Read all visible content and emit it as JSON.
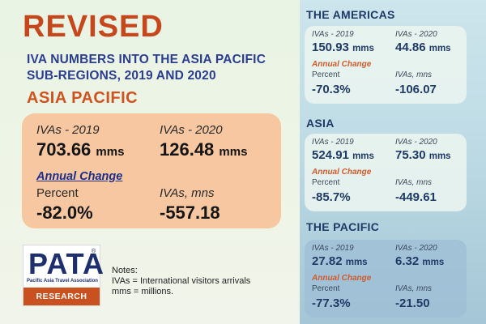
{
  "heading": {
    "revised": "REVISED",
    "subtitle_line1": "IVA NUMBERS INTO THE ASIA PACIFIC",
    "subtitle_line2": "SUB-REGIONS, 2019 AND 2020"
  },
  "asia_pacific": {
    "title": "ASIA PACIFIC",
    "label_2019": "IVAs - 2019",
    "value_2019": "703.66",
    "label_2020": "IVAs - 2020",
    "value_2020": "126.48",
    "unit": "mms",
    "annual_change": "Annual Change",
    "percent_label": "Percent",
    "percent_value": "-82.0%",
    "ivas_label": "IVAs, mns",
    "ivas_value": "-557.18"
  },
  "logo": {
    "mark": "PATA",
    "registered": "®",
    "subtitle": "Pacific Asia Travel Association",
    "bar": "RESEARCH"
  },
  "notes": {
    "title": "Notes:",
    "line1": "IVAs = International visitors arrivals",
    "line2": "mms = millions."
  },
  "regions": [
    {
      "title": "THE AMERICAS",
      "label_2019": "IVAs - 2019",
      "value_2019": "150.93",
      "label_2020": "IVAs - 2020",
      "value_2020": "44.86",
      "unit": "mms",
      "annual_change": "Annual Change",
      "percent_label": "Percent",
      "percent_value": "-70.3%",
      "ivas_label": "IVAs, mns",
      "ivas_value": "-106.07"
    },
    {
      "title": "ASIA",
      "label_2019": "IVAs - 2019",
      "value_2019": "524.91",
      "label_2020": "IVAs - 2020",
      "value_2020": "75.30",
      "unit": "mms",
      "annual_change": "Annual Change",
      "percent_label": "Percent",
      "percent_value": "-85.7%",
      "ivas_label": "IVAs, mns",
      "ivas_value": "-449.61"
    },
    {
      "title": "THE PACIFIC",
      "label_2019": "IVAs - 2019",
      "value_2019": "27.82",
      "label_2020": "IVAs - 2020",
      "value_2020": "6.32",
      "unit": "mms",
      "annual_change": "Annual Change",
      "percent_label": "Percent",
      "percent_value": "-77.3%",
      "ivas_label": "IVAs, mns",
      "ivas_value": "-21.50"
    }
  ],
  "colors": {
    "revised": "#c7471d",
    "subtitle": "#2b3d8f",
    "asia_pacific_box": "#f6c7a0",
    "logo_bar": "#c9501f"
  }
}
